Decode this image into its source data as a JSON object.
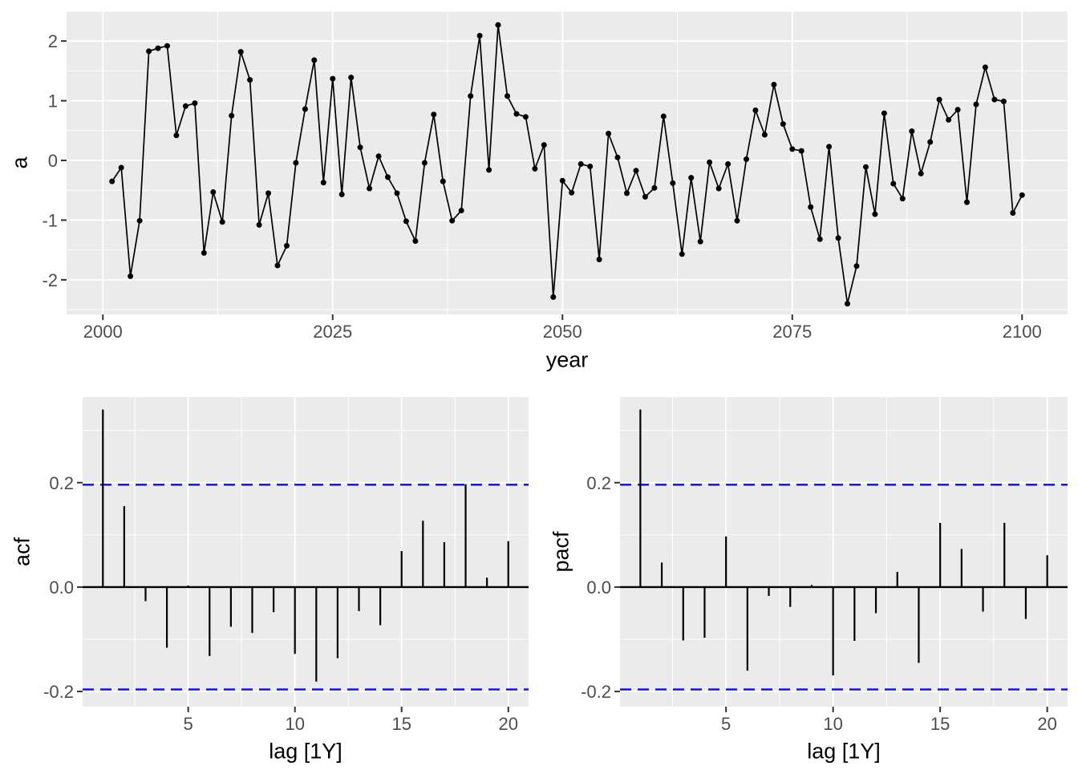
{
  "figure": {
    "background": "#FFFFFF",
    "panel_bg": "#EBEBEB",
    "grid_color": "#FFFFFF",
    "axis_text_color": "#4D4D4D",
    "axis_title_color": "#000000",
    "series_color": "#000000",
    "conf_line_color": "#0B0BEE",
    "tick_color": "#333333"
  },
  "chart_data": [
    {
      "id": "timeseries",
      "type": "line",
      "title": "",
      "xlabel": "year",
      "ylabel": "a",
      "x": [
        2001,
        2002,
        2003,
        2004,
        2005,
        2006,
        2007,
        2008,
        2009,
        2010,
        2011,
        2012,
        2013,
        2014,
        2015,
        2016,
        2017,
        2018,
        2019,
        2020,
        2021,
        2022,
        2023,
        2024,
        2025,
        2026,
        2027,
        2028,
        2029,
        2030,
        2031,
        2032,
        2033,
        2034,
        2035,
        2036,
        2037,
        2038,
        2039,
        2040,
        2041,
        2042,
        2043,
        2044,
        2045,
        2046,
        2047,
        2048,
        2049,
        2050,
        2051,
        2052,
        2053,
        2054,
        2055,
        2056,
        2057,
        2058,
        2059,
        2060,
        2061,
        2062,
        2063,
        2064,
        2065,
        2066,
        2067,
        2068,
        2069,
        2070,
        2071,
        2072,
        2073,
        2074,
        2075,
        2076,
        2077,
        2078,
        2079,
        2080,
        2081,
        2082,
        2083,
        2084,
        2085,
        2086,
        2087,
        2088,
        2089,
        2090,
        2091,
        2092,
        2093,
        2094,
        2095,
        2096,
        2097,
        2098,
        2099,
        2100
      ],
      "values": [
        -0.35,
        -0.12,
        -1.94,
        -1.01,
        1.83,
        1.88,
        1.92,
        0.42,
        0.91,
        0.96,
        -1.55,
        -0.53,
        -1.03,
        0.75,
        1.82,
        1.35,
        -1.08,
        -0.55,
        -1.76,
        -1.43,
        -0.04,
        0.86,
        1.68,
        -0.37,
        1.37,
        -0.57,
        1.39,
        0.22,
        -0.47,
        0.07,
        -0.28,
        -0.55,
        -1.02,
        -1.35,
        -0.04,
        0.77,
        -0.35,
        -1.01,
        -0.84,
        1.08,
        2.09,
        -0.16,
        2.27,
        1.08,
        0.78,
        0.73,
        -0.14,
        0.26,
        -2.29,
        -0.34,
        -0.54,
        -0.06,
        -0.1,
        -1.66,
        0.45,
        0.05,
        -0.55,
        -0.17,
        -0.61,
        -0.46,
        0.74,
        -0.38,
        -1.57,
        -0.29,
        -1.36,
        -0.03,
        -0.47,
        -0.06,
        -1.01,
        0.02,
        0.84,
        0.43,
        1.27,
        0.61,
        0.19,
        0.16,
        -0.78,
        -1.32,
        0.23,
        -1.3,
        -2.4,
        -1.77,
        -0.11,
        -0.9,
        0.79,
        -0.39,
        -0.64,
        0.49,
        -0.22,
        0.31,
        1.02,
        0.68,
        0.85,
        -0.7,
        0.94,
        1.56,
        1.02,
        0.99,
        -0.88,
        -0.58
      ],
      "xticks": [
        2000,
        2025,
        2050,
        2075,
        2100
      ],
      "xtick_labels": [
        "2000",
        "2025",
        "2050",
        "2075",
        "2100"
      ],
      "yticks": [
        -2,
        -1,
        0,
        1,
        2
      ],
      "ytick_labels": [
        "-2",
        "-1",
        "0",
        "1",
        "2"
      ],
      "x_minor": [
        2012.5,
        2037.5,
        2062.5,
        2087.5
      ],
      "y_minor": [
        -2.5,
        -1.5,
        -0.5,
        0.5,
        1.5,
        2.5
      ],
      "xlim": [
        1996.05,
        2104.95
      ],
      "ylim": [
        -2.58,
        2.5
      ],
      "grid": true,
      "legend": "none"
    },
    {
      "id": "acf",
      "type": "bar",
      "title": "",
      "xlabel": "lag [1Y]",
      "ylabel": "acf",
      "lags": [
        1,
        2,
        3,
        4,
        5,
        6,
        7,
        8,
        9,
        10,
        11,
        12,
        13,
        14,
        15,
        16,
        17,
        18,
        19,
        20
      ],
      "values": [
        0.34,
        0.155,
        -0.027,
        -0.116,
        0.003,
        -0.132,
        -0.076,
        -0.088,
        -0.048,
        -0.128,
        -0.181,
        -0.136,
        -0.046,
        -0.073,
        0.069,
        0.127,
        0.086,
        0.197,
        0.018,
        0.088
      ],
      "conf_level": 0.196,
      "conf_style": "dashed",
      "xticks": [
        5,
        10,
        15,
        20
      ],
      "xtick_labels": [
        "5",
        "10",
        "15",
        "20"
      ],
      "yticks": [
        -0.2,
        0.0,
        0.2
      ],
      "ytick_labels": [
        "-0.2",
        "0.0",
        "0.2"
      ],
      "x_minor": [
        2.5,
        7.5,
        12.5,
        17.5
      ],
      "y_minor": [
        -0.1,
        0.1,
        0.3
      ],
      "xlim": [
        0.05,
        20.95
      ],
      "ylim": [
        -0.229,
        0.364
      ],
      "grid": true,
      "legend": "none"
    },
    {
      "id": "pacf",
      "type": "bar",
      "title": "",
      "xlabel": "lag [1Y]",
      "ylabel": "pacf",
      "lags": [
        1,
        2,
        3,
        4,
        5,
        6,
        7,
        8,
        9,
        10,
        11,
        12,
        13,
        14,
        15,
        16,
        17,
        18,
        19,
        20
      ],
      "values": [
        0.34,
        0.047,
        -0.102,
        -0.097,
        0.097,
        -0.16,
        -0.017,
        -0.038,
        0.004,
        -0.169,
        -0.103,
        -0.05,
        0.029,
        -0.145,
        0.123,
        0.073,
        -0.047,
        0.123,
        -0.061,
        0.061
      ],
      "conf_level": 0.196,
      "conf_style": "dashed",
      "xticks": [
        5,
        10,
        15,
        20
      ],
      "xtick_labels": [
        "5",
        "10",
        "15",
        "20"
      ],
      "yticks": [
        -0.2,
        0.0,
        0.2
      ],
      "ytick_labels": [
        "-0.2",
        "0.0",
        "0.2"
      ],
      "x_minor": [
        2.5,
        7.5,
        12.5,
        17.5
      ],
      "y_minor": [
        -0.1,
        0.1,
        0.3
      ],
      "xlim": [
        0.05,
        20.95
      ],
      "ylim": [
        -0.229,
        0.364
      ],
      "grid": true,
      "legend": "none"
    }
  ]
}
